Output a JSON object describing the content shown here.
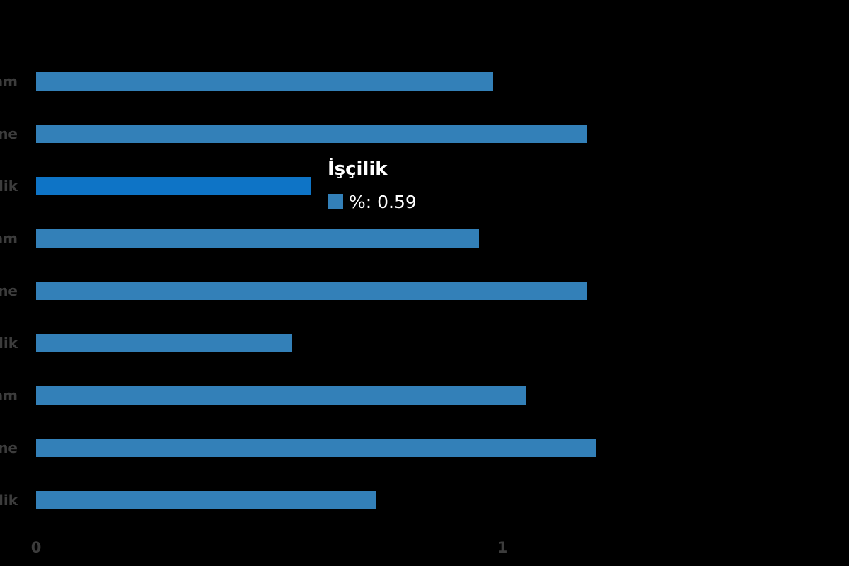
{
  "chart_data": {
    "type": "bar",
    "orientation": "horizontal",
    "visible_category_labels": [
      "am",
      "ne",
      "lik",
      "am",
      "ne",
      "lik",
      "am",
      "ne",
      "lik"
    ],
    "values": [
      0.98,
      1.18,
      0.59,
      0.95,
      1.18,
      0.55,
      1.05,
      1.2,
      0.73
    ],
    "series_name": "%",
    "x_ticks": [
      "0",
      "1"
    ],
    "xlim": [
      0,
      1.74
    ],
    "grid": false,
    "legend_position": "none",
    "bar_color": "#3380b8",
    "highlight_bar_color": "#0e74c6",
    "highlighted_index": 2,
    "label_color": "#3c3c3c",
    "background_color": "#000000"
  },
  "tooltip": {
    "title": "İşçilik",
    "label": "%: 0.59",
    "value": 0.59
  }
}
